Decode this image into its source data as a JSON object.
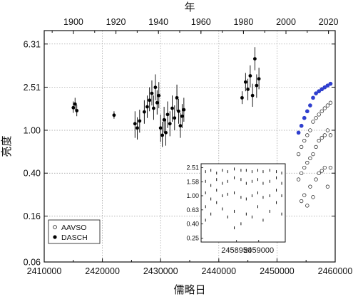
{
  "chart_data": {
    "type": "scatter",
    "x_axis": {
      "label": "儒略日",
      "range": [
        2410000,
        2460000
      ],
      "ticks": [
        {
          "value": 2410000,
          "label": "2410000"
        },
        {
          "value": 2420000,
          "label": "2420000"
        },
        {
          "value": 2430000,
          "label": "2430000"
        },
        {
          "value": 2440000,
          "label": "2440000"
        },
        {
          "value": 2450000,
          "label": "2450000"
        },
        {
          "value": 2460000,
          "label": "2460000"
        }
      ]
    },
    "top_axis": {
      "label": "年",
      "ticks": [
        {
          "value": 1900,
          "label": "1900"
        },
        {
          "value": 1920,
          "label": "1920"
        },
        {
          "value": 1940,
          "label": "1940"
        },
        {
          "value": 1960,
          "label": "1960"
        },
        {
          "value": 1980,
          "label": "1980"
        },
        {
          "value": 2000,
          "label": "2000"
        },
        {
          "value": 2020,
          "label": "2020"
        }
      ]
    },
    "y_axis": {
      "label": "亮度",
      "scale": "log",
      "range": [
        0.06,
        8.4
      ],
      "ticks": [
        {
          "value": 0.06,
          "label": "0.06"
        },
        {
          "value": 0.16,
          "label": "0.16"
        },
        {
          "value": 0.4,
          "label": "0.40"
        },
        {
          "value": 1.0,
          "label": "1.00"
        },
        {
          "value": 2.51,
          "label": "2.51"
        },
        {
          "value": 6.31,
          "label": "6.31"
        }
      ]
    },
    "grid": true,
    "legend": {
      "position": "bottom-left",
      "entries": [
        {
          "label": "AAVSO",
          "marker": "open-circle"
        },
        {
          "label": "DASCH",
          "marker": "filled-circle"
        }
      ]
    },
    "series": [
      {
        "name": "DASCH",
        "marker": "filled-circle",
        "points": [
          {
            "x": 2415000,
            "y": 1.62,
            "yerr": [
              1.45,
              1.85
            ]
          },
          {
            "x": 2415300,
            "y": 1.75,
            "yerr": [
              1.55,
              2.0
            ]
          },
          {
            "x": 2415600,
            "y": 1.52,
            "yerr": [
              1.35,
              1.72
            ]
          },
          {
            "x": 2422000,
            "y": 1.38,
            "yerr": [
              1.28,
              1.5
            ]
          },
          {
            "x": 2425600,
            "y": 1.15,
            "yerr": [
              0.85,
              1.5
            ]
          },
          {
            "x": 2426000,
            "y": 1.05,
            "yerr": [
              0.82,
              1.32
            ]
          },
          {
            "x": 2426400,
            "y": 1.22,
            "yerr": [
              0.95,
              1.55
            ]
          },
          {
            "x": 2427200,
            "y": 1.48,
            "yerr": [
              1.15,
              1.9
            ]
          },
          {
            "x": 2427700,
            "y": 1.65,
            "yerr": [
              1.3,
              2.1
            ]
          },
          {
            "x": 2428100,
            "y": 1.9,
            "yerr": [
              1.5,
              2.5
            ]
          },
          {
            "x": 2428500,
            "y": 2.2,
            "yerr": [
              1.7,
              2.9
            ]
          },
          {
            "x": 2428800,
            "y": 1.6,
            "yerr": [
              1.25,
              2.1
            ]
          },
          {
            "x": 2429100,
            "y": 2.5,
            "yerr": [
              1.9,
              3.3
            ]
          },
          {
            "x": 2429400,
            "y": 1.8,
            "yerr": [
              1.4,
              2.35
            ]
          },
          {
            "x": 2429700,
            "y": 2.1,
            "yerr": [
              1.6,
              2.8
            ]
          },
          {
            "x": 2430000,
            "y": 1.05,
            "yerr": [
              0.78,
              1.4
            ]
          },
          {
            "x": 2430300,
            "y": 0.9,
            "yerr": [
              0.7,
              1.2
            ]
          },
          {
            "x": 2430600,
            "y": 1.25,
            "yerr": [
              0.95,
              1.65
            ]
          },
          {
            "x": 2430900,
            "y": 0.95,
            "yerr": [
              0.72,
              1.28
            ]
          },
          {
            "x": 2431200,
            "y": 1.4,
            "yerr": [
              1.05,
              1.85
            ]
          },
          {
            "x": 2431600,
            "y": 1.15,
            "yerr": [
              0.88,
              1.5
            ]
          },
          {
            "x": 2432000,
            "y": 1.6,
            "yerr": [
              1.2,
              2.1
            ]
          },
          {
            "x": 2432400,
            "y": 1.3,
            "yerr": [
              1.0,
              1.7
            ]
          },
          {
            "x": 2432800,
            "y": 2.0,
            "yerr": [
              1.5,
              2.65
            ]
          },
          {
            "x": 2433100,
            "y": 1.5,
            "yerr": [
              1.15,
              1.95
            ]
          },
          {
            "x": 2433400,
            "y": 1.1,
            "yerr": [
              0.85,
              1.45
            ]
          },
          {
            "x": 2433700,
            "y": 1.35,
            "yerr": [
              1.05,
              1.75
            ]
          },
          {
            "x": 2434000,
            "y": 1.55,
            "yerr": [
              1.2,
              2.0
            ]
          },
          {
            "x": 2444000,
            "y": 2.0,
            "yerr": [
              1.75,
              2.3
            ]
          },
          {
            "x": 2444600,
            "y": 2.8,
            "yerr": [
              2.3,
              3.4
            ]
          },
          {
            "x": 2445000,
            "y": 2.4,
            "yerr": [
              1.9,
              3.0
            ]
          },
          {
            "x": 2445400,
            "y": 3.2,
            "yerr": [
              2.5,
              4.0
            ]
          },
          {
            "x": 2445800,
            "y": 2.1,
            "yerr": [
              1.65,
              2.7
            ]
          },
          {
            "x": 2446200,
            "y": 4.6,
            "yerr": [
              3.6,
              5.9
            ]
          },
          {
            "x": 2446500,
            "y": 2.6,
            "yerr": [
              2.0,
              3.3
            ]
          },
          {
            "x": 2446900,
            "y": 3.0,
            "yerr": [
              2.4,
              3.8
            ]
          }
        ]
      },
      {
        "name": "AAVSO",
        "marker": "open-circle",
        "points": [
          {
            "x": 2453700,
            "y": 0.95
          },
          {
            "x": 2453700,
            "y": 0.6
          },
          {
            "x": 2453700,
            "y": 0.35
          },
          {
            "x": 2454200,
            "y": 1.1
          },
          {
            "x": 2454200,
            "y": 0.7
          },
          {
            "x": 2454200,
            "y": 0.4
          },
          {
            "x": 2454200,
            "y": 0.22
          },
          {
            "x": 2454700,
            "y": 1.3
          },
          {
            "x": 2454700,
            "y": 0.8
          },
          {
            "x": 2454700,
            "y": 0.45
          },
          {
            "x": 2454700,
            "y": 0.25
          },
          {
            "x": 2455200,
            "y": 1.5
          },
          {
            "x": 2455200,
            "y": 0.9
          },
          {
            "x": 2455200,
            "y": 0.5
          },
          {
            "x": 2455200,
            "y": 0.2
          },
          {
            "x": 2455700,
            "y": 1.7
          },
          {
            "x": 2455700,
            "y": 1.0
          },
          {
            "x": 2455700,
            "y": 0.55
          },
          {
            "x": 2455700,
            "y": 0.3
          },
          {
            "x": 2456200,
            "y": 2.0
          },
          {
            "x": 2456200,
            "y": 1.2
          },
          {
            "x": 2456200,
            "y": 0.6
          },
          {
            "x": 2456200,
            "y": 0.24
          },
          {
            "x": 2456700,
            "y": 2.2
          },
          {
            "x": 2456700,
            "y": 1.3
          },
          {
            "x": 2456700,
            "y": 0.7
          },
          {
            "x": 2456700,
            "y": 0.35
          },
          {
            "x": 2457200,
            "y": 2.3
          },
          {
            "x": 2457200,
            "y": 1.4
          },
          {
            "x": 2457200,
            "y": 0.8
          },
          {
            "x": 2457200,
            "y": 0.4
          },
          {
            "x": 2457700,
            "y": 2.4
          },
          {
            "x": 2457700,
            "y": 1.5
          },
          {
            "x": 2457700,
            "y": 0.85
          },
          {
            "x": 2457700,
            "y": 0.42
          },
          {
            "x": 2458200,
            "y": 2.5
          },
          {
            "x": 2458200,
            "y": 1.6
          },
          {
            "x": 2458200,
            "y": 0.9
          },
          {
            "x": 2458200,
            "y": 0.45
          },
          {
            "x": 2458700,
            "y": 2.6
          },
          {
            "x": 2458700,
            "y": 1.7
          },
          {
            "x": 2458700,
            "y": 1.0
          },
          {
            "x": 2458700,
            "y": 0.3
          },
          {
            "x": 2459200,
            "y": 2.7
          },
          {
            "x": 2459200,
            "y": 1.8
          },
          {
            "x": 2459200,
            "y": 0.9
          },
          {
            "x": 2459200,
            "y": 0.45
          }
        ]
      }
    ],
    "inset": {
      "x_axis": {
        "range": [
          2458870,
          2459060
        ],
        "ticks": [
          {
            "value": 2458950,
            "label": "2458950"
          },
          {
            "value": 2459000,
            "label": "2459000"
          }
        ]
      },
      "y_axis": {
        "scale": "log",
        "range": [
          0.22,
          2.85
        ],
        "ticks": [
          {
            "value": 0.25,
            "label": "0.25"
          },
          {
            "value": 0.4,
            "label": "0.40"
          },
          {
            "value": 0.63,
            "label": "0.63"
          },
          {
            "value": 1.0,
            "label": "1.00"
          },
          {
            "value": 1.58,
            "label": "1.58"
          },
          {
            "value": 2.51,
            "label": "2.51"
          }
        ]
      },
      "points": [
        {
          "x": 2458880,
          "y": 2.2
        },
        {
          "x": 2458880,
          "y": 1.6
        },
        {
          "x": 2458880,
          "y": 1.1
        },
        {
          "x": 2458880,
          "y": 0.7
        },
        {
          "x": 2458880,
          "y": 0.45
        },
        {
          "x": 2458892,
          "y": 2.3
        },
        {
          "x": 2458892,
          "y": 1.4
        },
        {
          "x": 2458892,
          "y": 0.9
        },
        {
          "x": 2458892,
          "y": 0.55
        },
        {
          "x": 2458905,
          "y": 2.1
        },
        {
          "x": 2458905,
          "y": 1.7
        },
        {
          "x": 2458905,
          "y": 1.2
        },
        {
          "x": 2458905,
          "y": 0.8
        },
        {
          "x": 2458918,
          "y": 2.3
        },
        {
          "x": 2458918,
          "y": 1.5
        },
        {
          "x": 2458918,
          "y": 1.0
        },
        {
          "x": 2458918,
          "y": 0.65
        },
        {
          "x": 2458930,
          "y": 2.2
        },
        {
          "x": 2458930,
          "y": 1.6
        },
        {
          "x": 2458930,
          "y": 1.05
        },
        {
          "x": 2458930,
          "y": 0.5
        },
        {
          "x": 2458945,
          "y": 2.4
        },
        {
          "x": 2458945,
          "y": 1.8
        },
        {
          "x": 2458945,
          "y": 1.1
        },
        {
          "x": 2458945,
          "y": 0.6
        },
        {
          "x": 2458945,
          "y": 0.35
        },
        {
          "x": 2458960,
          "y": 2.3
        },
        {
          "x": 2458960,
          "y": 1.7
        },
        {
          "x": 2458960,
          "y": 0.95
        },
        {
          "x": 2458960,
          "y": 0.4
        },
        {
          "x": 2458972,
          "y": 2.3
        },
        {
          "x": 2458972,
          "y": 1.5
        },
        {
          "x": 2458972,
          "y": 0.9
        },
        {
          "x": 2458972,
          "y": 0.55
        },
        {
          "x": 2458985,
          "y": 2.2
        },
        {
          "x": 2458985,
          "y": 1.6
        },
        {
          "x": 2458985,
          "y": 1.0
        },
        {
          "x": 2458985,
          "y": 0.5
        },
        {
          "x": 2458998,
          "y": 2.3
        },
        {
          "x": 2458998,
          "y": 1.7
        },
        {
          "x": 2458998,
          "y": 1.1
        },
        {
          "x": 2458998,
          "y": 0.7
        },
        {
          "x": 2459010,
          "y": 2.2
        },
        {
          "x": 2459010,
          "y": 1.5
        },
        {
          "x": 2459010,
          "y": 0.95
        },
        {
          "x": 2459010,
          "y": 0.45
        },
        {
          "x": 2459025,
          "y": 2.3
        },
        {
          "x": 2459025,
          "y": 1.6
        },
        {
          "x": 2459025,
          "y": 1.0
        },
        {
          "x": 2459025,
          "y": 0.6
        },
        {
          "x": 2459040,
          "y": 2.2
        },
        {
          "x": 2459040,
          "y": 1.8
        },
        {
          "x": 2459040,
          "y": 1.2
        },
        {
          "x": 2459040,
          "y": 0.8
        },
        {
          "x": 2459052,
          "y": 2.1
        },
        {
          "x": 2459052,
          "y": 1.5
        },
        {
          "x": 2459052,
          "y": 1.0
        },
        {
          "x": 2459052,
          "y": 0.55
        }
      ]
    },
    "colors": {
      "axis": "#111111",
      "grid": "#9a9a9a",
      "dasch_marker": "#000000",
      "aavso_marker_edge": "#111111",
      "aavso_highlight": "#2f3fd0",
      "background": "#ffffff"
    }
  }
}
